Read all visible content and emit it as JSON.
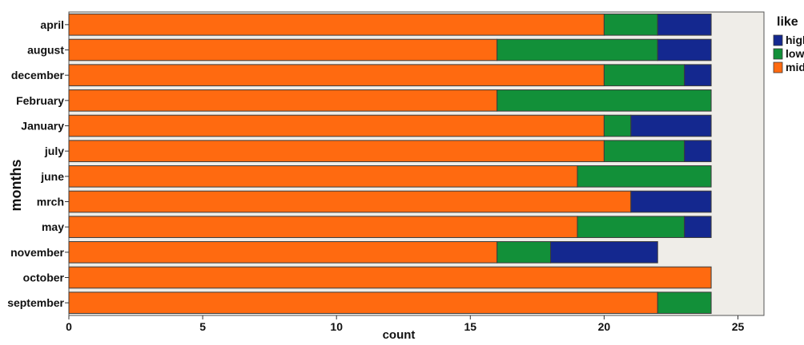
{
  "chart_data": {
    "type": "bar",
    "orientation": "horizontal",
    "stacked": true,
    "title": "",
    "xlabel": "count",
    "ylabel": "months",
    "xlim": [
      0,
      26
    ],
    "xticks": [
      0,
      5,
      10,
      15,
      20,
      25
    ],
    "grid": false,
    "categories": [
      "april",
      "august",
      "december",
      "February",
      "January",
      "july",
      "june",
      "mrch",
      "may",
      "november",
      "october",
      "september"
    ],
    "series": [
      {
        "name": "mid",
        "color": "#ff6a10",
        "values": [
          20,
          16,
          20,
          16,
          20,
          20,
          19,
          21,
          19,
          16,
          24,
          22
        ]
      },
      {
        "name": "low",
        "color": "#129039",
        "values": [
          2,
          6,
          3,
          8,
          1,
          3,
          5,
          0,
          4,
          2,
          0,
          2
        ]
      },
      {
        "name": "high",
        "color": "#14288f",
        "values": [
          2,
          2,
          1,
          0,
          3,
          1,
          0,
          3,
          1,
          4,
          0,
          0
        ]
      }
    ],
    "legend": {
      "title": "like",
      "placement": "right",
      "entries": [
        {
          "label": "high",
          "color": "#14288f"
        },
        {
          "label": "low",
          "color": "#129039"
        },
        {
          "label": "mid",
          "color": "#ff6a10"
        }
      ]
    },
    "panel_background": "#efede8"
  }
}
